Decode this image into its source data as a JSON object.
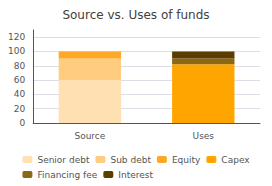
{
  "chart_data": {
    "type": "bar",
    "title": "Source vs. Uses of funds",
    "categories": [
      "Source",
      "Uses"
    ],
    "series": [
      {
        "name": "Senior debt",
        "color": "#FFE0B2",
        "values": [
          60,
          0
        ]
      },
      {
        "name": "Sub debt",
        "color": "#FFCC80",
        "values": [
          30,
          0
        ]
      },
      {
        "name": "Equity",
        "color": "#FFA726",
        "values": [
          10,
          0
        ]
      },
      {
        "name": "Capex",
        "color": "#FFA500",
        "values": [
          0,
          82
        ]
      },
      {
        "name": "Financing fee",
        "color": "#8B6914",
        "values": [
          0,
          8
        ]
      },
      {
        "name": "Interest",
        "color": "#5C3D00",
        "values": [
          0,
          10
        ]
      }
    ],
    "stacked": true,
    "ylim": [
      0,
      130
    ],
    "yticks": [
      0,
      20,
      40,
      60,
      80,
      100,
      120
    ],
    "grid": true,
    "legend": "bottom"
  }
}
